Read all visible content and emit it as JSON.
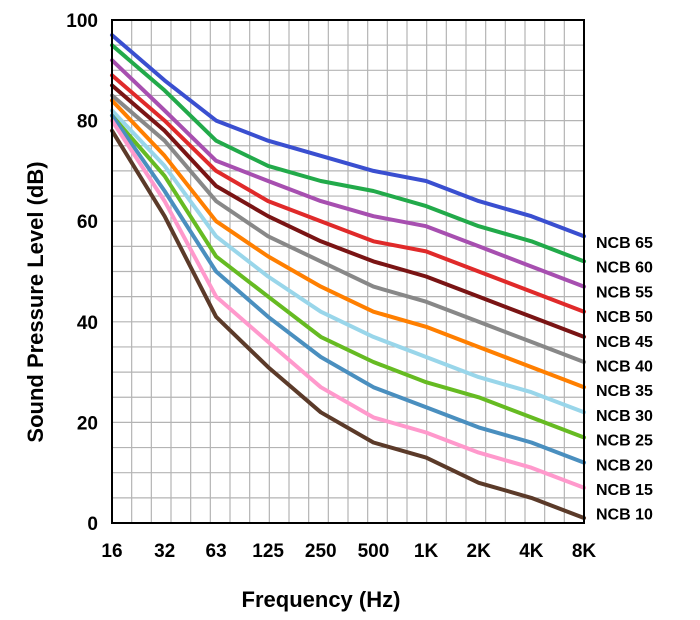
{
  "chart_data": {
    "type": "line",
    "title": "",
    "xlabel": "Frequency (Hz)",
    "ylabel": "Sound Pressure Level (dB)",
    "x_scale": "log",
    "x": [
      16,
      32,
      63,
      125,
      250,
      500,
      1000,
      2000,
      4000,
      8000
    ],
    "x_tick_labels": [
      "16",
      "32",
      "63",
      "125",
      "250",
      "500",
      "1K",
      "2K",
      "4K",
      "8K"
    ],
    "ylim": [
      0,
      100
    ],
    "y_ticks": [
      0,
      20,
      40,
      60,
      80,
      100
    ],
    "grid": true,
    "legend": "curve labels at right end",
    "series": [
      {
        "name": "NCB 65",
        "color": "#3a4fd0",
        "values": [
          97,
          88,
          80,
          76,
          73,
          70,
          68,
          64,
          61,
          57
        ]
      },
      {
        "name": "NCB 60",
        "color": "#22aa4a",
        "values": [
          95,
          86,
          76,
          71,
          68,
          66,
          63,
          59,
          56,
          52
        ]
      },
      {
        "name": "NCB 55",
        "color": "#a74fb0",
        "values": [
          92,
          82,
          72,
          68,
          64,
          61,
          59,
          55,
          51,
          47
        ]
      },
      {
        "name": "NCB 50",
        "color": "#e02a2a",
        "values": [
          89,
          80,
          70,
          64,
          60,
          56,
          54,
          50,
          46,
          42
        ]
      },
      {
        "name": "NCB 45",
        "color": "#7a1414",
        "values": [
          87,
          78,
          67,
          61,
          56,
          52,
          49,
          45,
          41,
          37
        ]
      },
      {
        "name": "NCB 40",
        "color": "#888888",
        "values": [
          85,
          76,
          64,
          57,
          52,
          47,
          44,
          40,
          36,
          32
        ]
      },
      {
        "name": "NCB 35",
        "color": "#ff7f00",
        "values": [
          84,
          73,
          60,
          53,
          47,
          42,
          39,
          35,
          31,
          27
        ]
      },
      {
        "name": "NCB 30",
        "color": "#99d6ea",
        "values": [
          82,
          71,
          57,
          49,
          42,
          37,
          33,
          29,
          26,
          22
        ]
      },
      {
        "name": "NCB 25",
        "color": "#66bb22",
        "values": [
          81,
          69,
          53,
          45,
          37,
          32,
          28,
          25,
          21,
          17
        ]
      },
      {
        "name": "NCB 20",
        "color": "#4a8fbf",
        "values": [
          81,
          66,
          50,
          41,
          33,
          27,
          23,
          19,
          16,
          12
        ]
      },
      {
        "name": "NCB 15",
        "color": "#ff99cc",
        "values": [
          80,
          64,
          45,
          36,
          27,
          21,
          18,
          14,
          11,
          7
        ]
      },
      {
        "name": "NCB 10",
        "color": "#5b3a29",
        "values": [
          78,
          61,
          41,
          31,
          22,
          16,
          13,
          8,
          5,
          1
        ]
      }
    ]
  }
}
